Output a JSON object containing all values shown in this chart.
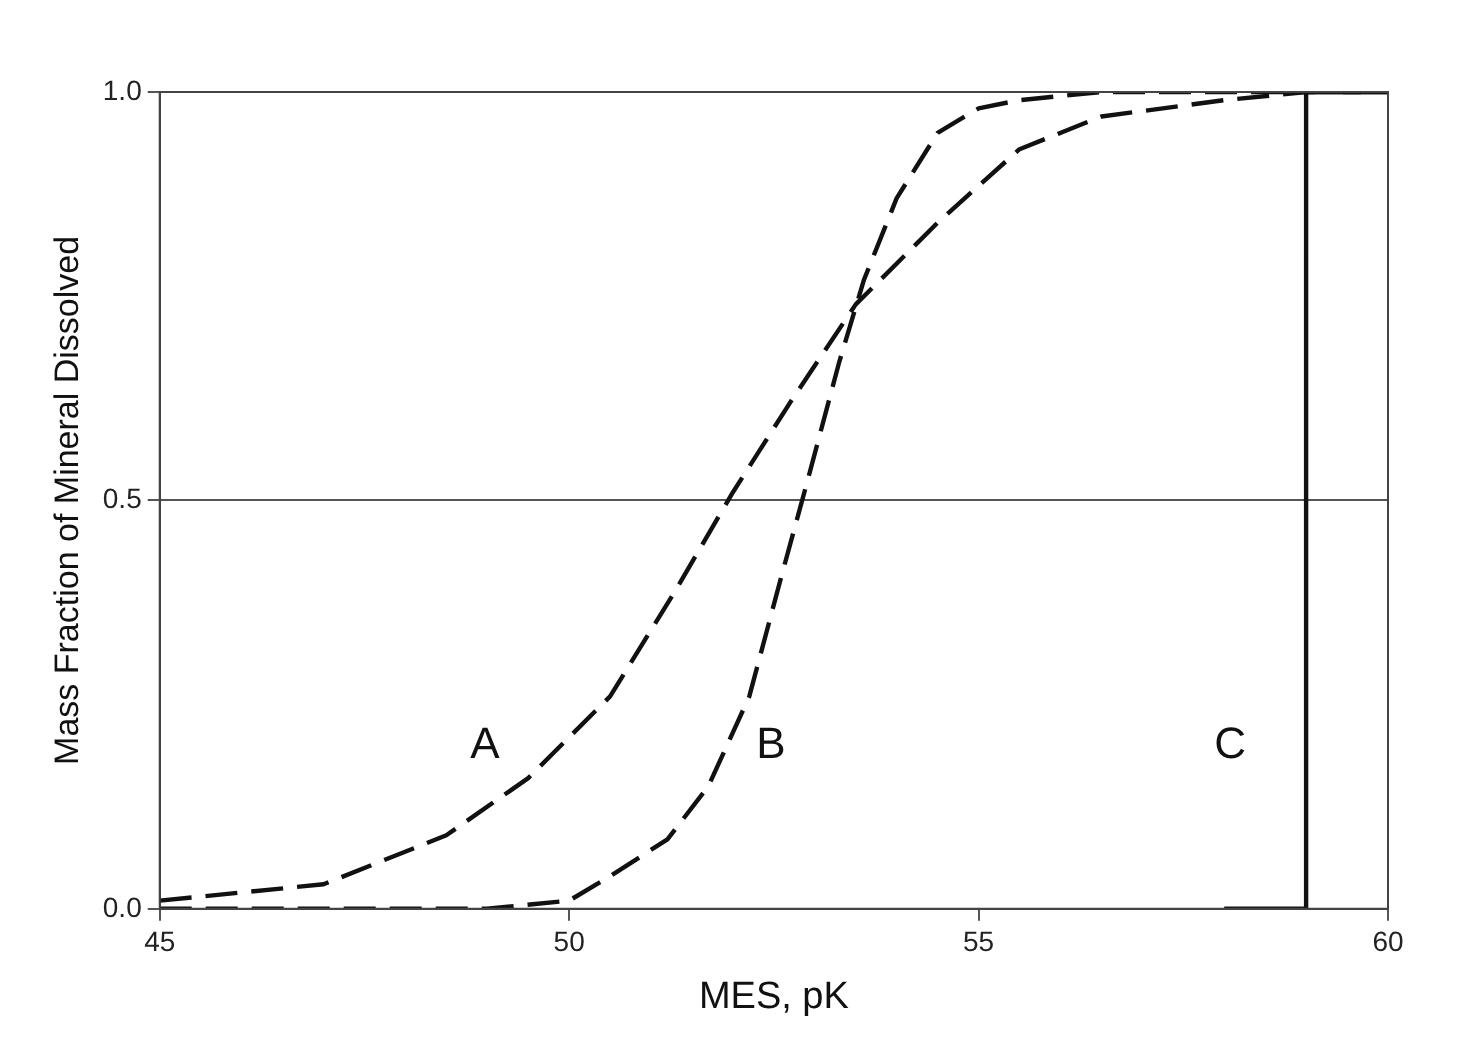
{
  "chart_data": {
    "type": "line",
    "xlabel": "MES, pK",
    "ylabel": "Mass Fraction of Mineral Dissolved",
    "xlim": [
      45,
      60
    ],
    "xticks": [
      45,
      50,
      55,
      60
    ],
    "ylim": [
      0,
      1
    ],
    "yticks": [
      {
        "value": 0,
        "label": "0.0"
      },
      {
        "value": 0.5,
        "label": "0.5"
      },
      {
        "value": 1,
        "label": "1.0"
      }
    ],
    "grid": "y",
    "legend": false,
    "marker": "none",
    "series": [
      {
        "name": "A",
        "color": "#111111",
        "line_style": "dashed",
        "x": [
          45,
          47,
          48.5,
          49.5,
          50.5,
          51.3,
          52,
          52.7,
          53.5,
          54.5,
          55.5,
          56.5,
          58,
          59,
          60
        ],
        "values": [
          0.01,
          0.03,
          0.09,
          0.16,
          0.26,
          0.39,
          0.51,
          0.62,
          0.74,
          0.84,
          0.93,
          0.97,
          0.99,
          1.0,
          1.0
        ]
      },
      {
        "name": "B",
        "color": "#111111",
        "line_style": "dashed",
        "x": [
          45,
          49,
          50,
          50.5,
          51.2,
          51.7,
          52.2,
          52.6,
          52.9,
          53.3,
          53.6,
          54,
          54.5,
          55,
          55.5,
          56.5,
          60
        ],
        "values": [
          0,
          0,
          0.01,
          0.04,
          0.085,
          0.15,
          0.26,
          0.41,
          0.52,
          0.67,
          0.77,
          0.87,
          0.95,
          0.98,
          0.99,
          1.0,
          1.0
        ]
      },
      {
        "name": "C",
        "color": "#111111",
        "line_style": "solid",
        "x": [
          58,
          59,
          59,
          60
        ],
        "values": [
          0,
          0,
          1,
          1
        ]
      }
    ]
  }
}
